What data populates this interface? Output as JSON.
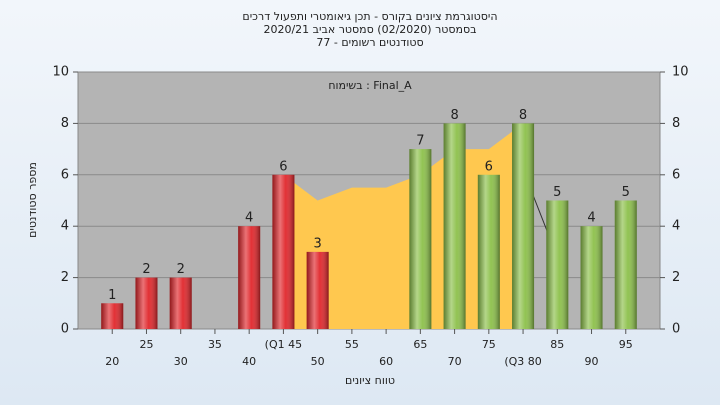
{
  "chart_data": {
    "type": "bar",
    "title": "היסטוגרמת ציונים בקורס - תכן גיאומטרי ותפעול דרכים",
    "subtitle": "בסמסטר  (02/2020)  סמסטר אביב 2020/21",
    "subtitle2": "סטודנטים רשומים - 77",
    "annotation": "בשימוח : Final_A",
    "y_label": "מספר סטודנטים",
    "x_label": "טווח ציונים",
    "categories": [
      "20",
      "25",
      "30",
      "35",
      "40",
      "(Q1 45",
      "50",
      "55",
      "60",
      "65",
      "70",
      "75",
      "(Q3 80",
      "85",
      "90",
      "95"
    ],
    "values": [
      1,
      2,
      2,
      0,
      4,
      6,
      3,
      0,
      0,
      7,
      8,
      6,
      8,
      5,
      4,
      5
    ],
    "colors": [
      "#e0262b",
      "#e0262b",
      "#e0262b",
      "#e0262b",
      "#e0262b",
      "#e0262b",
      "#e0262b",
      "#e0262b",
      "#e0262b",
      "#8cc04a",
      "#8cc04a",
      "#8cc04a",
      "#8cc04a",
      "#8cc04a",
      "#8cc04a",
      "#8cc04a"
    ],
    "area": {
      "color": "#ffc84f",
      "values": [
        null,
        null,
        null,
        null,
        null,
        6,
        5,
        5.5,
        5.5,
        6,
        7,
        7,
        8,
        null,
        null,
        null
      ]
    },
    "line": {
      "color": "#333333",
      "values": [
        null,
        null,
        null,
        null,
        null,
        null,
        null,
        null,
        null,
        null,
        null,
        null,
        6.2,
        2.8,
        null,
        null
      ]
    },
    "ylim": [
      0,
      10
    ],
    "yticks": [
      0,
      2,
      4,
      6,
      8,
      10
    ],
    "y2lim": [
      0,
      10
    ],
    "y2ticks": [
      0,
      2,
      4,
      6,
      8,
      10
    ],
    "grid": true
  }
}
